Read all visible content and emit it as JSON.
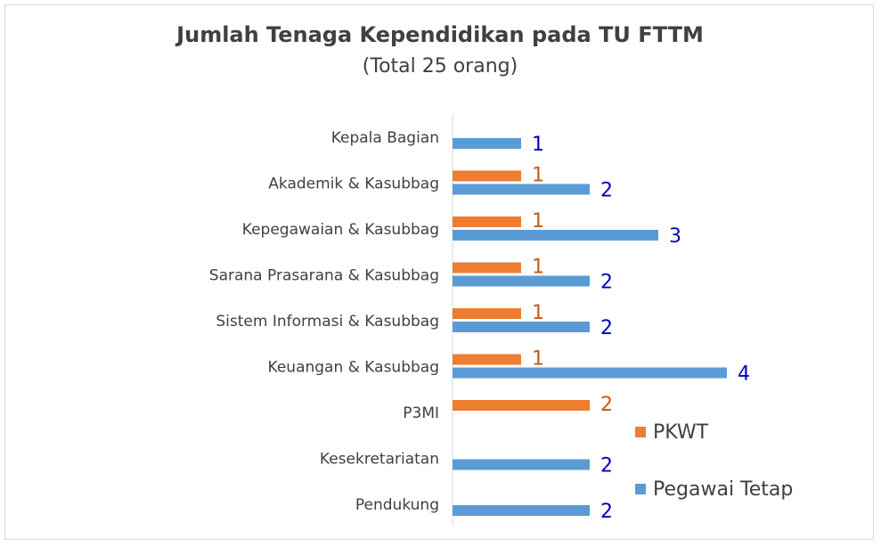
{
  "chart_data": {
    "type": "hbar",
    "title": "Jumlah Tenaga Kependidikan pada TU FTTM",
    "subtitle": "(Total 25 orang)",
    "categories": [
      "Kepala Bagian",
      "Akademik & Kasubbag",
      "Kepegawaian & Kasubbag",
      "Sarana Prasarana & Kasubbag",
      "Sistem Informasi & Kasubbag",
      "Keuangan & Kasubbag",
      "P3MI",
      "Kesekretariatan",
      "Pendukung"
    ],
    "series": [
      {
        "name": "PKWT",
        "color": "#ed7d31",
        "label_color": "#c55a11",
        "values": [
          null,
          1,
          1,
          1,
          1,
          1,
          2,
          null,
          null
        ]
      },
      {
        "name": "Pegawai Tetap",
        "color": "#5b9bd5",
        "label_color": "#0000c0",
        "values": [
          1,
          2,
          3,
          2,
          2,
          4,
          null,
          2,
          2
        ]
      }
    ],
    "xlim": [
      0,
      6
    ],
    "legend": "right"
  }
}
